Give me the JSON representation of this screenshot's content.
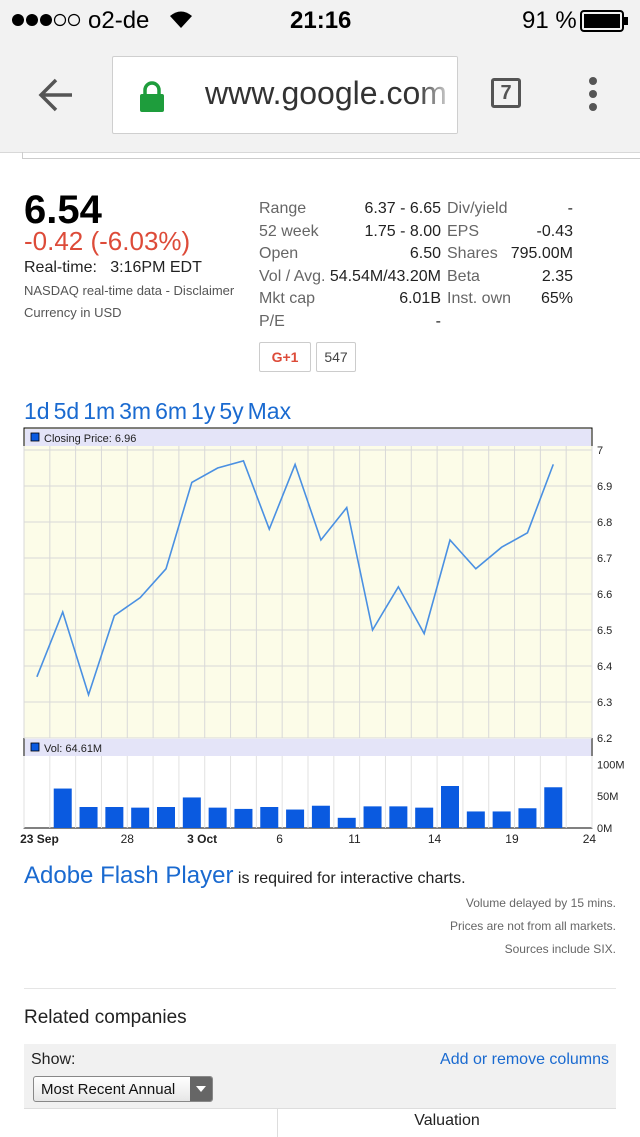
{
  "status": {
    "carrier": "o2-de",
    "time": "21:16",
    "battery": "91 %"
  },
  "browser": {
    "url": "www.google.com",
    "tabs": "7"
  },
  "quote": {
    "price": "6.54",
    "change": "-0.42 (-6.03%)",
    "realtime_label": "Real-time:",
    "realtime_time": "3:16PM EDT",
    "source": "NASDAQ real-time data - Disclaimer",
    "currency": "Currency in USD"
  },
  "stats_left": [
    {
      "k": "Range",
      "v": "6.37 - 6.65"
    },
    {
      "k": "52 week",
      "v": "1.75 - 8.00"
    },
    {
      "k": "Open",
      "v": "6.50"
    },
    {
      "k": "Vol / Avg.",
      "v": "54.54M/43.20M"
    },
    {
      "k": "Mkt cap",
      "v": "6.01B"
    },
    {
      "k": "P/E",
      "v": "-"
    }
  ],
  "stats_right": [
    {
      "k": "Div/yield",
      "v": "-"
    },
    {
      "k": "EPS",
      "v": "-0.43"
    },
    {
      "k": "Shares",
      "v": "795.00M"
    },
    {
      "k": "Beta",
      "v": "2.35"
    },
    {
      "k": "Inst. own",
      "v": "65%"
    }
  ],
  "gplus": {
    "label": "G+1",
    "count": "547"
  },
  "ranges": [
    "1d",
    "5d",
    "1m",
    "3m",
    "6m",
    "1y",
    "5y",
    "Max"
  ],
  "chart_data": {
    "type": "line",
    "price_legend": "Closing Price: 6.96",
    "vol_legend": "Vol: 64.61M",
    "x": [
      "Sep 22",
      "Sep 23",
      "Sep 24",
      "Sep 25",
      "Sep 26",
      "Sep 29",
      "Sep 30",
      "Oct 1",
      "Oct 2",
      "Oct 3",
      "Oct 6",
      "Oct 7",
      "Oct 8",
      "Oct 9",
      "Oct 10",
      "Oct 13",
      "Oct 14",
      "Oct 15",
      "Oct 16",
      "Oct 17",
      "Oct 20",
      "Oct 21"
    ],
    "close": [
      6.37,
      6.55,
      6.32,
      6.54,
      6.59,
      6.67,
      6.91,
      6.95,
      6.97,
      6.78,
      6.96,
      6.75,
      6.84,
      6.5,
      6.62,
      6.49,
      6.75,
      6.67,
      6.73,
      6.77,
      6.96,
      null
    ],
    "volume_M": [
      null,
      62,
      33,
      33,
      32,
      33,
      48,
      32,
      30,
      33,
      29,
      35,
      16,
      34,
      34,
      32,
      66,
      26,
      26,
      31,
      64,
      null
    ],
    "ylim": [
      6.2,
      7.05
    ],
    "yticks": [
      "7",
      "6.9",
      "6.8",
      "6.7",
      "6.6",
      "6.5",
      "6.4",
      "6.3",
      "6.2"
    ],
    "vol_ticks": [
      "100M",
      "50M",
      "0M"
    ],
    "xtick_labels": [
      "23 Sep",
      "28",
      "3 Oct",
      "6",
      "11",
      "14",
      "19",
      "24"
    ]
  },
  "flash": {
    "link": "Adobe Flash Player",
    "text": "is required for interactive charts."
  },
  "notes": [
    "Volume delayed by 15 mins.",
    "Prices are not from all markets.",
    "Sources include SIX."
  ],
  "related": {
    "title": "Related companies",
    "show_label": "Show:",
    "add_remove": "Add or remove columns",
    "selected": "Most Recent Annual",
    "valuation": "Valuation"
  },
  "colors": {
    "link": "#1a6ad0",
    "negative": "#dd4b39",
    "line": "#4a90e2",
    "bar": "#0a5ae0",
    "chart_bg": "#fcfce8"
  }
}
